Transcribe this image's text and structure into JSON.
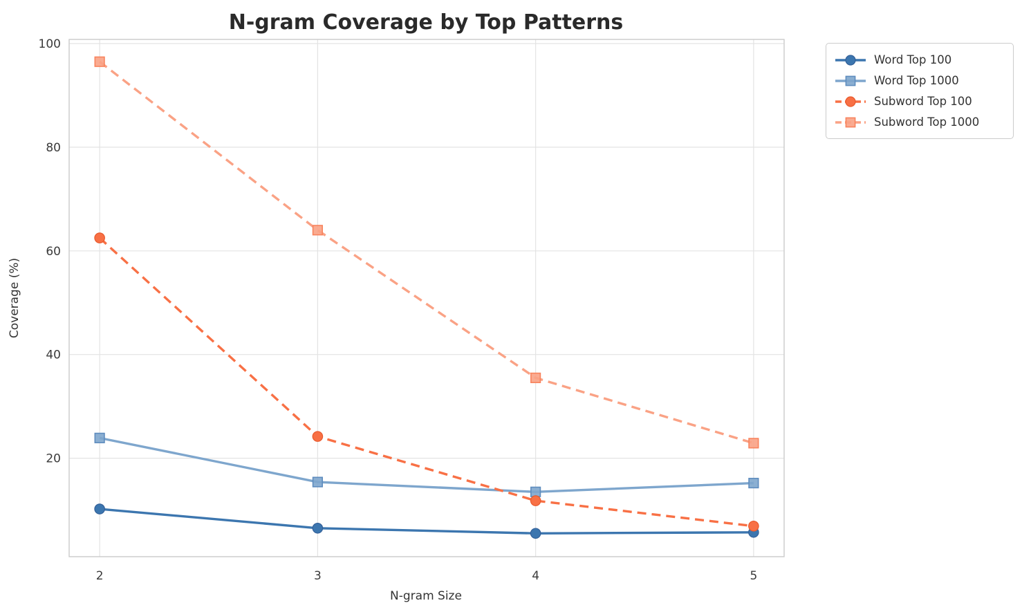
{
  "chart_data": {
    "type": "line",
    "title": "N-gram Coverage by Top Patterns",
    "xlabel": "N-gram Size",
    "ylabel": "Coverage (%)",
    "x": [
      2,
      3,
      4,
      5
    ],
    "x_ticks": [
      "2",
      "3",
      "4",
      "5"
    ],
    "y_ticks": [
      20,
      40,
      60,
      80,
      100
    ],
    "xlim": [
      1.86,
      5.14
    ],
    "ylim": [
      1.0,
      100.8
    ],
    "grid": true,
    "legend_position": "outside-top-right",
    "series": [
      {
        "name": "Word Top 100",
        "values": [
          10.2,
          6.5,
          5.5,
          5.7
        ],
        "color": "#3C76AF",
        "marker_edge": "#336099",
        "line_style": "solid",
        "marker": "circle"
      },
      {
        "name": "Word Top 1000",
        "values": [
          23.9,
          15.4,
          13.5,
          15.2
        ],
        "color": "#7EA6CD",
        "marker_edge": "#5E8CBE",
        "line_style": "solid",
        "marker": "square"
      },
      {
        "name": "Subword Top 100",
        "values": [
          62.5,
          24.2,
          11.8,
          6.9
        ],
        "color": "#F87045",
        "marker_edge": "#E8592C",
        "line_style": "dashed",
        "marker": "circle"
      },
      {
        "name": "Subword Top 1000",
        "values": [
          96.5,
          64.0,
          35.5,
          22.9
        ],
        "color": "#FAA285",
        "marker_edge": "#F8835D",
        "line_style": "dashed",
        "marker": "square"
      }
    ],
    "colors": {
      "background": "#FFFFFF",
      "grid": "#E3E3E3",
      "spine": "#CBCBCB",
      "title": "#2A2A2A",
      "tick": "#3A3A3A",
      "label": "#333333",
      "legend_border": "#CBCBCB"
    }
  }
}
